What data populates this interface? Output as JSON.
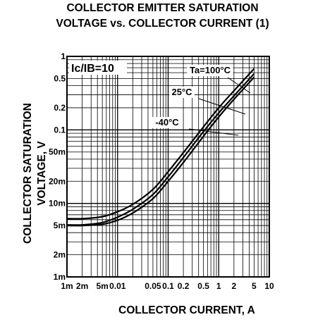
{
  "chart_data": {
    "type": "line",
    "title_line1": "COLLECTOR EMITTER SATURATION",
    "title_line2": "VOLTAGE vs. COLLECTOR CURRENT (1)",
    "xlabel": "COLLECTOR CURRENT, A",
    "ylabel_line1": "COLLECTOR SATURATION",
    "ylabel_line2": "VOLTAGE, V",
    "x_scale": "log",
    "y_scale": "log",
    "xlim": [
      0.001,
      10
    ],
    "ylim": [
      0.001,
      1
    ],
    "grid": true,
    "x_ticks": [
      {
        "value": 0.001,
        "label": "1m"
      },
      {
        "value": 0.002,
        "label": "2m"
      },
      {
        "value": 0.005,
        "label": "5m"
      },
      {
        "value": 0.01,
        "label": "0.01"
      },
      {
        "value": 0.05,
        "label": "0.05"
      },
      {
        "value": 0.1,
        "label": "0.1"
      },
      {
        "value": 0.2,
        "label": "0.2"
      },
      {
        "value": 0.5,
        "label": "0.5"
      },
      {
        "value": 1,
        "label": "1"
      },
      {
        "value": 2,
        "label": "2"
      },
      {
        "value": 5,
        "label": "5"
      },
      {
        "value": 10,
        "label": "10"
      }
    ],
    "y_ticks": [
      {
        "value": 1,
        "label": "1"
      },
      {
        "value": 0.5,
        "label": "0.5"
      },
      {
        "value": 0.2,
        "label": "0.2"
      },
      {
        "value": 0.1,
        "label": "0.1"
      },
      {
        "value": 0.05,
        "label": "50m"
      },
      {
        "value": 0.02,
        "label": "20m"
      },
      {
        "value": 0.01,
        "label": "10m"
      },
      {
        "value": 0.005,
        "label": "5m"
      },
      {
        "value": 0.002,
        "label": "2m"
      },
      {
        "value": 0.001,
        "label": "1m"
      }
    ],
    "condition": "Ic/IB=10",
    "series": [
      {
        "name": "Ta=100°C",
        "x": [
          0.001,
          0.002,
          0.005,
          0.01,
          0.02,
          0.05,
          0.1,
          0.2,
          0.5,
          1,
          2,
          5
        ],
        "y": [
          0.0062,
          0.0062,
          0.0066,
          0.0077,
          0.0097,
          0.0155,
          0.027,
          0.049,
          0.11,
          0.2,
          0.34,
          0.68
        ]
      },
      {
        "name": "25°C",
        "x": [
          0.001,
          0.002,
          0.005,
          0.01,
          0.02,
          0.05,
          0.1,
          0.2,
          0.5,
          1,
          2,
          5
        ],
        "y": [
          0.0051,
          0.0051,
          0.0055,
          0.0065,
          0.0083,
          0.0132,
          0.023,
          0.042,
          0.095,
          0.17,
          0.29,
          0.58
        ]
      },
      {
        "name": "-40°C",
        "x": [
          0.001,
          0.002,
          0.005,
          0.01,
          0.02,
          0.05,
          0.1,
          0.2,
          0.5,
          1,
          2,
          5
        ],
        "y": [
          0.005,
          0.005,
          0.0052,
          0.0059,
          0.0074,
          0.0116,
          0.02,
          0.036,
          0.082,
          0.15,
          0.26,
          0.52
        ]
      }
    ],
    "annotations": [
      {
        "text": "Ta=100°C",
        "series": "Ta=100°C"
      },
      {
        "text": "25°C",
        "series": "25°C"
      },
      {
        "text": "-40°C",
        "series": "-40°C"
      }
    ]
  }
}
